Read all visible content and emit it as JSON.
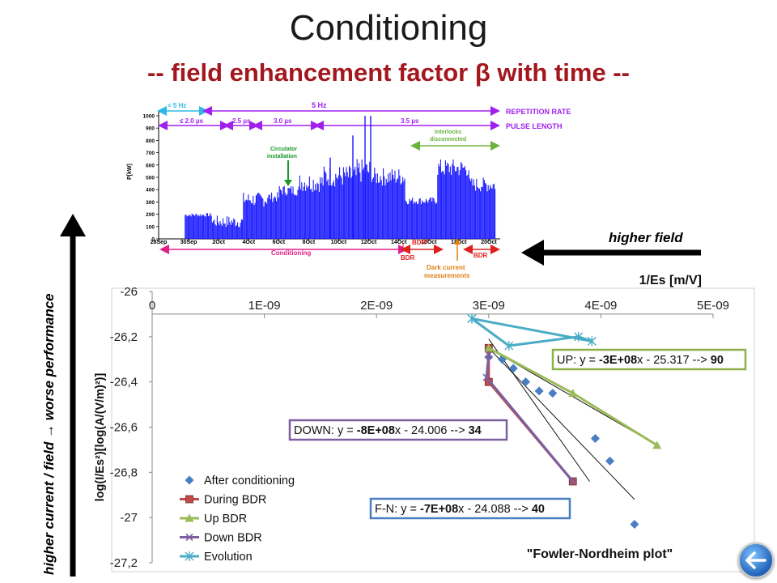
{
  "slide": {
    "title": "Conditioning",
    "subtitle": "-- field enhancement factor β with time --",
    "right_arrow_label": "higher field",
    "left_axis_note": "higher current / field → worse performance"
  },
  "history_inset": {
    "y_axis_label": "P[kW]",
    "y_ticks": [
      "0",
      "100",
      "200",
      "300",
      "400",
      "500",
      "600",
      "700",
      "800",
      "900",
      "1000"
    ],
    "x_ticks": [
      "28Sep",
      "30Sep",
      "2Oct",
      "4Oct",
      "6Oct",
      "8Oct",
      "10Oct",
      "12Oct",
      "14Oct",
      "16Oct",
      "18Oct",
      "20Oct"
    ],
    "repetition": {
      "label": "REPETITION RATE",
      "segments": [
        "< 5 Hz",
        "5 Hz"
      ]
    },
    "pulse": {
      "label": "PULSE LENGTH",
      "segments": [
        "≤ 2.0 µs",
        "2.5 µs",
        "3.0 µs",
        "3.5 µs"
      ]
    },
    "annotations": {
      "circulator": [
        "Circulator",
        "installation"
      ],
      "interlocks": [
        "Interlocks",
        "disconnected"
      ],
      "conditioning": "Conditioning",
      "bdr_star": "BDR*",
      "bdr_a": "BDR",
      "bdr_b": "BDR",
      "dark": [
        "Dark current",
        "measurements"
      ]
    },
    "colors": {
      "trace": "#1a1aff",
      "repetition": "#2db8e6",
      "pulse": "#a020f0",
      "conditioning": "#e0208a",
      "bdr": "#e02020",
      "interlock": "#6ab23a",
      "circulator": "#1a9a2a",
      "dark": "#e08010"
    }
  },
  "chart_data": {
    "type": "scatter",
    "title": "\"Fowler-Nordheim plot\"",
    "xlabel": "1/Es [m/V]",
    "ylabel": "log(I/Es²)[log(A/(V/m)²)]",
    "xlim": [
      0,
      5e-09
    ],
    "ylim": [
      -27.2,
      -26
    ],
    "x_ticks": [
      0,
      1e-09,
      2e-09,
      3e-09,
      4e-09,
      5e-09
    ],
    "x_tick_labels": [
      "0",
      "1E-09",
      "2E-09",
      "3E-09",
      "4E-09",
      "5E-09"
    ],
    "y_ticks": [
      -26,
      -26.2,
      -26.4,
      -26.6,
      -26.8,
      -27,
      -27.2
    ],
    "y_tick_labels": [
      "-26",
      "-26,2",
      "-26,4",
      "-26,6",
      "-26,8",
      "-27",
      "-27,2"
    ],
    "x_axis_position": "top",
    "grid": false,
    "legend": "bottom-left",
    "series": [
      {
        "name": "After conditioning",
        "marker": "diamond",
        "color": "#4a7ec2",
        "line": false,
        "x": [
          3e-09,
          3.12e-09,
          3.22e-09,
          3.33e-09,
          3.45e-09,
          3.57e-09,
          3.95e-09,
          4.08e-09,
          4.3e-09
        ],
        "y": [
          -26.29,
          -26.3,
          -26.34,
          -26.4,
          -26.44,
          -26.45,
          -26.65,
          -26.75,
          -27.03
        ]
      },
      {
        "name": "During BDR",
        "marker": "square",
        "color": "#be4b48",
        "line": true,
        "x": [
          3e-09,
          3e-09,
          3.75e-09
        ],
        "y": [
          -26.25,
          -26.4,
          -26.84
        ]
      },
      {
        "name": "Up BDR",
        "marker": "triangle",
        "color": "#9bbb59",
        "line": true,
        "x": [
          3e-09,
          3.75e-09,
          4.5e-09
        ],
        "y": [
          -26.25,
          -26.45,
          -26.68
        ]
      },
      {
        "name": "Down BDR",
        "marker": "x",
        "color": "#7d5fa0",
        "line": true,
        "x": [
          3e-09,
          2.98e-09,
          3.75e-09
        ],
        "y": [
          -26.28,
          -26.38,
          -26.84
        ]
      },
      {
        "name": "Evolution",
        "marker": "star",
        "color": "#4bacc6",
        "line": true,
        "x": [
          2.85e-09,
          3.18e-09,
          3.8e-09,
          3.92e-09,
          2.85e-09
        ],
        "y": [
          -26.12,
          -26.24,
          -26.2,
          -26.22,
          -26.12
        ]
      }
    ],
    "trendlines": [
      {
        "name": "black-1",
        "color": "#111111",
        "x": [
          3e-09,
          3.9e-09
        ],
        "y": [
          -26.21,
          -26.84
        ]
      },
      {
        "name": "black-2",
        "color": "#111111",
        "x": [
          3e-09,
          4.3e-09
        ],
        "y": [
          -26.25,
          -26.92
        ]
      },
      {
        "name": "up-fit",
        "color": "#111111",
        "x": [
          3e-09,
          4.5e-09
        ],
        "y": [
          -26.25,
          -26.68
        ]
      }
    ],
    "annotations": [
      {
        "name": "up",
        "color": "#8fb04a",
        "prefix": "UP: y = ",
        "coef": "-3E+08",
        "middle": "x - 25.317 --> ",
        "beta": "90"
      },
      {
        "name": "down",
        "color": "#7d5fa0",
        "prefix": "DOWN: y = ",
        "coef": "-8E+08",
        "middle": "x - 24.006 --> ",
        "beta": "34"
      },
      {
        "name": "fn",
        "color": "#4a7ec2",
        "prefix": "F-N: y = ",
        "coef": "-7E+08",
        "middle": "x - 24.088 --> ",
        "beta": "40"
      }
    ]
  }
}
